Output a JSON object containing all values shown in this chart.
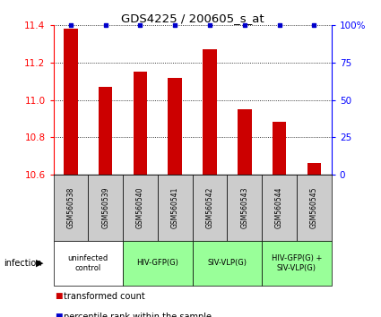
{
  "title": "GDS4225 / 200605_s_at",
  "samples": [
    "GSM560538",
    "GSM560539",
    "GSM560540",
    "GSM560541",
    "GSM560542",
    "GSM560543",
    "GSM560544",
    "GSM560545"
  ],
  "red_values": [
    11.38,
    11.07,
    11.15,
    11.12,
    11.27,
    10.95,
    10.88,
    10.66
  ],
  "blue_values": [
    100,
    100,
    100,
    100,
    100,
    100,
    100,
    100
  ],
  "ylim_left": [
    10.6,
    11.4
  ],
  "ylim_right": [
    0,
    100
  ],
  "yticks_left": [
    10.6,
    10.8,
    11.0,
    11.2,
    11.4
  ],
  "yticks_right": [
    0,
    25,
    50,
    75,
    100
  ],
  "bar_color": "#cc0000",
  "dot_color": "#0000cc",
  "background_color": "#ffffff",
  "sample_bg_color": "#cccccc",
  "groups": [
    {
      "label": "uninfected\ncontrol",
      "start": 0,
      "end": 2,
      "color": "#ffffff"
    },
    {
      "label": "HIV-GFP(G)",
      "start": 2,
      "end": 4,
      "color": "#99ff99"
    },
    {
      "label": "SIV-VLP(G)",
      "start": 4,
      "end": 6,
      "color": "#99ff99"
    },
    {
      "label": "HIV-GFP(G) +\nSIV-VLP(G)",
      "start": 6,
      "end": 8,
      "color": "#99ff99"
    }
  ],
  "infection_label": "infection",
  "legend_red": "transformed count",
  "legend_blue": "percentile rank within the sample",
  "bar_width": 0.4
}
